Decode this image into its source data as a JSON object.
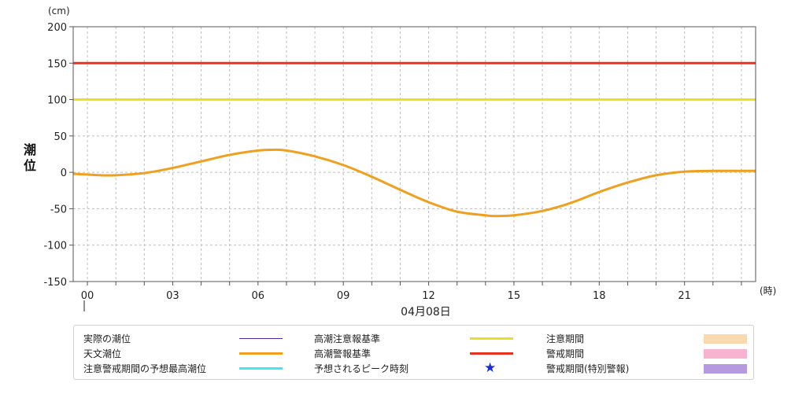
{
  "chart_data": {
    "type": "line",
    "ylabel": "潮位",
    "yunit": "(cm)",
    "xunit": "(時)",
    "date": "04月08日",
    "ylim": [
      -150,
      200
    ],
    "yticks": [
      200,
      150,
      100,
      50,
      0,
      -50,
      -100,
      -150
    ],
    "xlim": [
      -0.5,
      23.5
    ],
    "xticks": [
      {
        "x": 0,
        "label": "00"
      },
      {
        "x": 3,
        "label": "03"
      },
      {
        "x": 6,
        "label": "06"
      },
      {
        "x": 9,
        "label": "09"
      },
      {
        "x": 12,
        "label": "12"
      },
      {
        "x": 15,
        "label": "15"
      },
      {
        "x": 18,
        "label": "18"
      },
      {
        "x": 21,
        "label": "21"
      }
    ],
    "grid": true,
    "reference_lines": [
      {
        "name": "高潮注意報基準",
        "value": 100,
        "color": "#e8e020"
      },
      {
        "name": "高潮警報基準",
        "value": 150,
        "color": "#e8321e"
      }
    ],
    "series": [
      {
        "name": "天文潮位",
        "color": "#f0a01e",
        "x": [
          -0.5,
          0,
          0.5,
          1,
          2,
          3,
          4,
          5,
          6,
          6.5,
          7,
          8,
          9,
          10,
          11,
          12,
          13,
          14,
          14.3,
          15,
          16,
          17,
          18,
          19,
          20,
          21,
          22,
          23,
          23.5
        ],
        "y": [
          -2,
          -3,
          -4,
          -4,
          -1,
          6,
          15,
          24,
          30,
          31,
          30,
          22,
          10,
          -6,
          -24,
          -41,
          -54,
          -59,
          -60,
          -59,
          -53,
          -42,
          -27,
          -14,
          -4,
          1,
          2,
          2,
          2
        ]
      }
    ]
  },
  "legend": {
    "actual": "実際の潮位",
    "astronomical": "天文潮位",
    "predicted_max": "注意警戒期間の予想最高潮位",
    "advisory": "高潮注意報基準",
    "warning": "高潮警報基準",
    "peak_time": "予想されるピーク時刻",
    "caution_period": "注意期間",
    "warning_period": "警戒期間",
    "special_warning_period": "警戒期間(特別警報)"
  },
  "colors": {
    "actual": "#4a2aa6",
    "astronomical": "#f0a01e",
    "predicted_max": "#3ee8f4",
    "advisory": "#e8e020",
    "warning": "#e8321e",
    "peak_star": "#1a2fd6",
    "caution_box": "#fad8b0",
    "warning_box": "#f7b3cf",
    "special_box": "#b59ae0"
  }
}
